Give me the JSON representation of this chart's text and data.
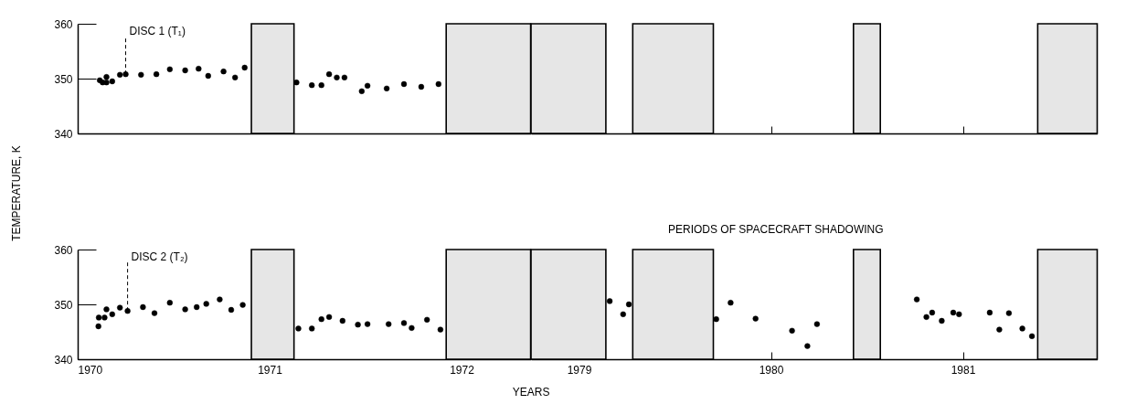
{
  "chart_data": [
    {
      "type": "scatter",
      "xlim": [
        1970,
        1972.36
      ],
      "xticks": [
        1970,
        1971,
        1972
      ],
      "ylim": [
        340,
        360
      ],
      "yticks": [
        340,
        350,
        360
      ],
      "tick_labels": "y",
      "marker": "circle",
      "series": [
        {
          "color": "#000000",
          "x": [
            1970.115,
            1970.13,
            1970.15,
            1970.15,
            1970.18,
            1970.22,
            1970.25,
            1970.33,
            1970.41,
            1970.48,
            1970.56,
            1970.63,
            1970.68,
            1970.76,
            1970.82,
            1970.87,
            1971.14,
            1971.22,
            1971.27,
            1971.31,
            1971.35,
            1971.39,
            1971.48,
            1971.51,
            1971.61,
            1971.7,
            1971.79,
            1971.88
          ],
          "values": [
            349.7,
            349.3,
            349.3,
            350.3,
            349.5,
            350.7,
            350.8,
            350.7,
            350.8,
            351.7,
            351.5,
            351.8,
            350.5,
            351.3,
            350.2,
            352,
            349.3,
            348.8,
            348.8,
            350.8,
            350.2,
            350.2,
            347.7,
            348.7,
            348.2,
            349,
            348.5,
            349
          ]
        }
      ],
      "bands": [
        {
          "axis": "x",
          "from": 1970.905,
          "to": 1971.127,
          "color": "#e6e6e6"
        },
        {
          "axis": "x",
          "from": 1971.92,
          "to": 1972.36,
          "color": "#e6e6e6"
        }
      ],
      "annotations": [
        {
          "text": "DISC 1 (T₁)",
          "x": 1970.25,
          "y": 350.8
        }
      ]
    },
    {
      "type": "scatter",
      "xlim": [
        1978.75,
        1981.7
      ],
      "xticks": [
        1979,
        1980,
        1981
      ],
      "ylim": [
        340,
        360
      ],
      "yticks": [
        340,
        350,
        360
      ],
      "tick_labels": false,
      "bands": [
        {
          "axis": "x",
          "from": 1978.75,
          "to": 1979.14,
          "color": "#e6e6e6"
        },
        {
          "axis": "x",
          "from": 1979.28,
          "to": 1979.7,
          "color": "#e6e6e6"
        },
        {
          "axis": "x",
          "from": 1980.43,
          "to": 1980.57,
          "color": "#e6e6e6"
        },
        {
          "axis": "x",
          "from": 1981.39,
          "to": 1981.7,
          "color": "#e6e6e6"
        }
      ]
    },
    {
      "type": "scatter",
      "ylabel": "TEMPERATURE, K",
      "xlabel": "YEARS",
      "xlim": [
        1970,
        1972.36
      ],
      "xticks": [
        1970,
        1971,
        1972
      ],
      "ylim": [
        340,
        360
      ],
      "yticks": [
        340,
        350,
        360
      ],
      "marker": "circle",
      "series": [
        {
          "color": "#000000",
          "x": [
            1970.108,
            1970.11,
            1970.14,
            1970.15,
            1970.18,
            1970.22,
            1970.26,
            1970.34,
            1970.4,
            1970.48,
            1970.56,
            1970.62,
            1970.67,
            1970.74,
            1970.8,
            1970.86,
            1971.15,
            1971.22,
            1971.27,
            1971.31,
            1971.38,
            1971.46,
            1971.51,
            1971.62,
            1971.7,
            1971.74,
            1971.82,
            1971.89
          ],
          "values": [
            346,
            347.6,
            347.6,
            349.1,
            348.2,
            349.4,
            348.8,
            349.5,
            348.4,
            350.3,
            349.1,
            349.5,
            350.1,
            350.9,
            349,
            349.9,
            345.6,
            345.6,
            347.3,
            347.7,
            347,
            346.3,
            346.4,
            346.4,
            346.6,
            345.7,
            347.2,
            345.4
          ]
        }
      ],
      "bands": [
        {
          "axis": "x",
          "from": 1970.905,
          "to": 1971.127,
          "color": "#e6e6e6"
        },
        {
          "axis": "x",
          "from": 1971.92,
          "to": 1972.36,
          "color": "#e6e6e6"
        }
      ],
      "annotations": [
        {
          "text": "DISC 2 (T₂)",
          "x": 1970.26,
          "y": 348.8
        }
      ]
    },
    {
      "type": "scatter",
      "xlim": [
        1978.75,
        1981.7
      ],
      "xticks": [
        1979,
        1980,
        1981
      ],
      "ylim": [
        340,
        360
      ],
      "yticks": [
        340,
        350,
        360
      ],
      "tick_labels": "x",
      "marker": "circle",
      "series": [
        {
          "color": "#000000",
          "x": [
            1979.16,
            1979.23,
            1979.26,
            1979.715,
            1979.79,
            1979.92,
            1980.11,
            1980.19,
            1980.24,
            1980.76,
            1980.81,
            1980.84,
            1980.89,
            1980.95,
            1980.98,
            1981.14,
            1981.19,
            1981.24,
            1981.31,
            1981.36
          ],
          "values": [
            350.6,
            348.2,
            350,
            347.3,
            350.3,
            347.4,
            345.2,
            342.4,
            346.4,
            350.9,
            347.7,
            348.5,
            347,
            348.5,
            348.2,
            348.5,
            345.4,
            348.4,
            345.6,
            344.2
          ]
        }
      ],
      "bands": [
        {
          "axis": "x",
          "from": 1978.75,
          "to": 1979.14,
          "color": "#e6e6e6"
        },
        {
          "axis": "x",
          "from": 1979.28,
          "to": 1979.7,
          "color": "#e6e6e6"
        },
        {
          "axis": "x",
          "from": 1980.43,
          "to": 1980.57,
          "color": "#e6e6e6"
        },
        {
          "axis": "x",
          "from": 1981.39,
          "to": 1981.7,
          "color": "#e6e6e6"
        }
      ],
      "annotations": [
        "PERIODS OF SPACECRAFT SHADOWING"
      ]
    }
  ]
}
